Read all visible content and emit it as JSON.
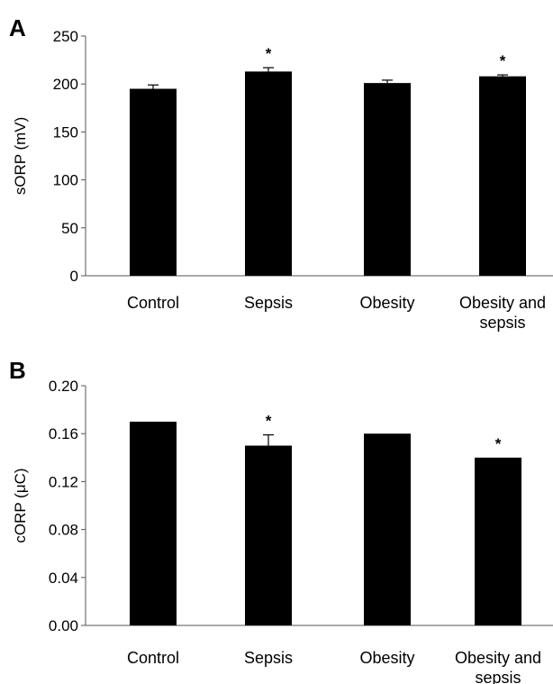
{
  "chart_data": [
    {
      "panel_label": "A",
      "type": "bar",
      "ylabel": "sORP (mV)",
      "ylim": [
        0,
        250
      ],
      "yticks": [
        "0",
        "50",
        "100",
        "150",
        "200",
        "250"
      ],
      "categories": [
        [
          "Control"
        ],
        [
          "Sepsis"
        ],
        [
          "Obesity"
        ],
        [
          "Obesity and",
          "sepsis"
        ]
      ],
      "values": [
        195,
        213,
        201,
        208
      ],
      "errors": [
        4,
        4,
        3,
        1.5
      ],
      "significance": [
        "",
        "*",
        "",
        "*"
      ],
      "bar_color": "#000000"
    },
    {
      "panel_label": "B",
      "type": "bar",
      "ylabel": "cORP (μC)",
      "ylim": [
        0,
        0.2
      ],
      "yticks": [
        "0.00",
        "0.04",
        "0.08",
        "0.12",
        "0.16",
        "0.20"
      ],
      "categories": [
        [
          "Control"
        ],
        [
          "Sepsis"
        ],
        [
          "Obesity"
        ],
        [
          "Obesity and",
          "sepsis"
        ]
      ],
      "values": [
        0.17,
        0.15,
        0.16,
        0.14
      ],
      "errors": [
        0,
        0.009,
        0,
        0
      ],
      "significance": [
        "",
        "*",
        "",
        "*"
      ],
      "bar_color": "#000000"
    }
  ]
}
